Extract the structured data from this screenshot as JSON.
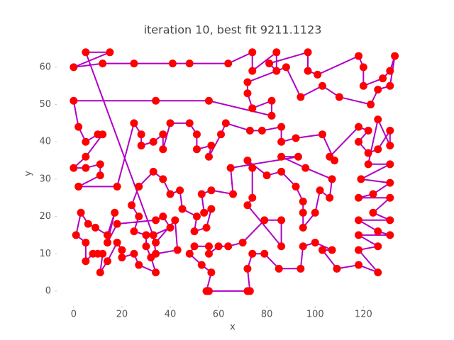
{
  "chart_data": {
    "type": "tour",
    "title": "iteration 10, best fit 9211.1123",
    "x_label": "x",
    "y_label": "y",
    "xlim": [
      -7,
      134
    ],
    "ylim": [
      -4,
      67
    ],
    "xticks": [
      0,
      20,
      40,
      60,
      80,
      100,
      120
    ],
    "yticks": [
      0,
      10,
      20,
      30,
      40,
      50,
      60
    ],
    "line_color": "#b000c4",
    "marker_color": "#ff0000",
    "closed": true,
    "x": [
      5,
      15,
      0,
      12,
      25,
      41,
      48,
      64,
      74,
      74,
      84,
      84,
      81,
      97,
      97,
      101,
      118,
      120,
      120,
      128,
      131,
      133,
      131,
      126,
      123,
      110,
      103,
      94,
      88,
      72,
      72,
      74,
      82,
      82,
      56,
      34,
      0,
      2,
      5,
      10,
      12,
      5,
      0,
      5,
      11,
      11,
      2,
      18,
      25,
      28,
      28,
      33,
      37,
      37,
      40,
      48,
      51,
      51,
      57,
      56,
      61,
      63,
      73,
      78,
      86,
      86,
      92,
      103,
      108,
      106,
      118,
      122,
      118,
      122,
      126,
      131,
      131,
      126,
      122,
      131,
      119,
      131,
      124,
      118,
      131,
      124,
      131,
      118,
      126,
      131,
      118,
      126,
      118,
      126,
      118,
      109,
      103,
      107,
      100,
      95,
      94,
      85,
      79,
      74,
      72,
      73,
      72,
      56,
      55,
      57,
      53,
      48,
      50,
      56,
      56,
      60,
      64,
      70,
      79,
      86,
      86,
      72,
      74,
      74,
      72,
      80,
      86,
      92,
      95,
      95,
      95,
      100,
      102,
      106,
      107,
      96,
      86,
      93,
      65,
      66,
      57,
      53,
      54,
      57,
      55,
      50,
      51,
      45,
      44,
      40,
      37,
      33,
      27,
      24,
      27,
      25,
      30,
      30,
      32,
      34,
      27,
      25,
      20,
      20,
      18,
      14,
      11,
      12,
      10,
      8,
      5,
      5,
      1,
      3,
      6,
      9,
      14,
      17,
      14,
      18,
      34,
      37,
      40,
      33,
      34,
      43,
      42,
      34
    ],
    "series": [
      {
        "values": [
          64,
          64,
          60,
          61,
          61,
          61,
          61,
          61,
          64,
          59,
          64,
          59,
          61,
          64,
          59,
          58,
          63,
          60,
          55,
          57,
          59,
          63,
          55,
          54,
          50,
          52,
          55,
          52,
          60,
          56,
          53,
          49,
          51,
          47,
          51,
          51,
          51,
          44,
          40,
          42,
          42,
          36,
          33,
          33,
          34,
          31,
          28,
          28,
          45,
          42,
          39,
          40,
          42,
          38,
          45,
          45,
          42,
          38,
          39,
          36,
          42,
          45,
          43,
          43,
          44,
          40,
          41,
          42,
          35,
          36,
          44,
          43,
          40,
          37,
          38,
          43,
          39,
          46,
          34,
          34,
          30,
          29,
          26,
          25,
          25,
          21,
          19,
          19,
          16,
          15,
          15,
          12,
          11,
          5,
          7,
          6,
          11,
          11,
          13,
          12,
          6,
          6,
          10,
          10,
          6,
          0,
          0,
          0,
          0,
          5,
          7,
          10,
          12,
          12,
          10,
          12,
          12,
          13,
          19,
          19,
          12,
          23,
          25,
          33,
          35,
          31,
          32,
          28,
          24,
          21,
          17,
          21,
          27,
          25,
          30,
          33,
          36,
          36,
          33,
          26,
          27,
          26,
          21,
          22,
          17,
          16,
          20,
          22,
          27,
          26,
          30,
          32,
          28,
          23,
          20,
          16,
          15,
          12,
          9,
          5,
          7,
          10,
          9,
          11,
          13,
          8,
          5,
          10,
          10,
          10,
          8,
          13,
          15,
          21,
          18,
          17,
          15,
          21,
          13,
          18,
          19,
          20,
          17,
          15,
          10,
          11,
          19,
          13
        ]
      }
    ]
  }
}
